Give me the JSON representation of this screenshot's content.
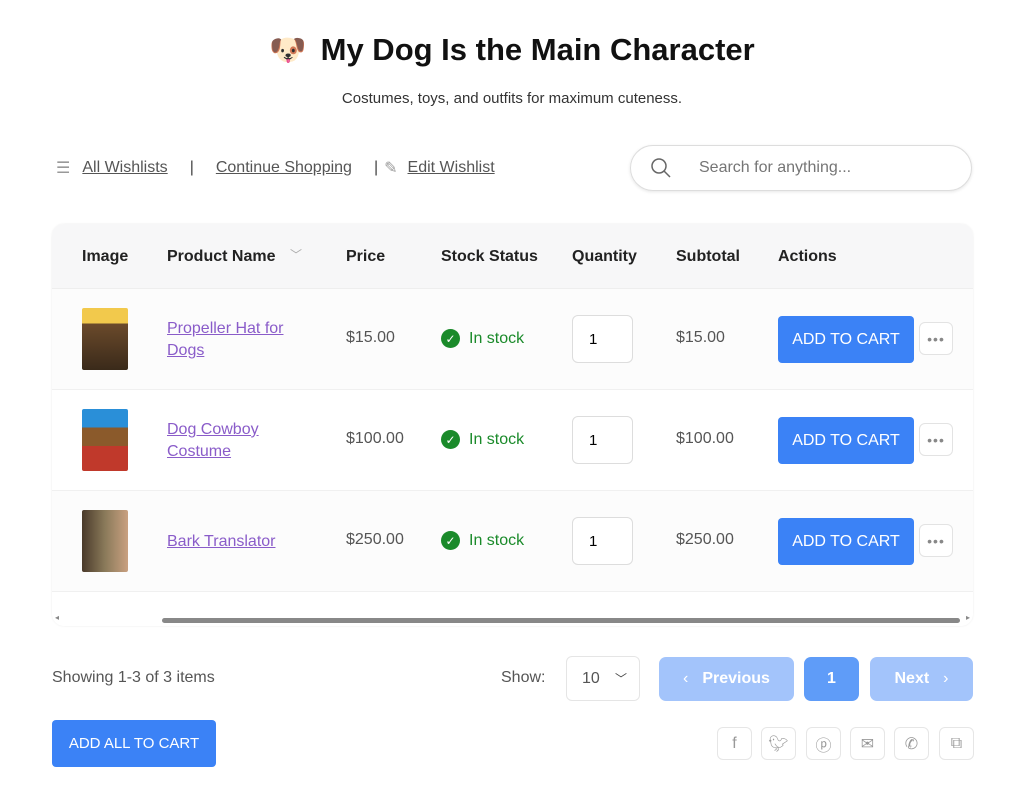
{
  "header": {
    "emoji": "🐶",
    "title": "My Dog Is the Main Character",
    "subtitle": "Costumes, toys, and outfits for maximum cuteness."
  },
  "nav": {
    "all_wishlists": "All Wishlists",
    "separator": "|",
    "continue_shopping": "Continue Shopping",
    "edit_wishlist": "Edit Wishlist"
  },
  "search": {
    "placeholder": "Search for anything..."
  },
  "table": {
    "headers": {
      "image": "Image",
      "product": "Product Name",
      "price": "Price",
      "stock": "Stock Status",
      "quantity": "Quantity",
      "subtotal": "Subtotal",
      "actions": "Actions"
    },
    "rows": [
      {
        "name": "Propeller Hat for Dogs",
        "price": "$15.00",
        "stock": "In stock",
        "quantity": "1",
        "subtotal": "$15.00",
        "action": "ADD TO CART",
        "more": "•••"
      },
      {
        "name": "Dog Cowboy Costume",
        "price": "$100.00",
        "stock": "In stock",
        "quantity": "1",
        "subtotal": "$100.00",
        "action": "ADD TO CART",
        "more": "•••"
      },
      {
        "name": "Bark Translator",
        "price": "$250.00",
        "stock": "In stock",
        "quantity": "1",
        "subtotal": "$250.00",
        "action": "ADD TO CART",
        "more": "•••"
      }
    ]
  },
  "footer": {
    "showing": "Showing 1-3 of 3 items",
    "show_label": "Show:",
    "per_page": "10",
    "previous": "Previous",
    "page": "1",
    "next": "Next",
    "add_all": "ADD ALL TO CART"
  },
  "share_icons": [
    "facebook-icon",
    "twitter-icon",
    "pinterest-icon",
    "email-icon",
    "whatsapp-icon",
    "copy-icon"
  ],
  "colors": {
    "accent": "#3b82f6",
    "in_stock": "#1a8a2a",
    "link": "#8a5cc9"
  }
}
